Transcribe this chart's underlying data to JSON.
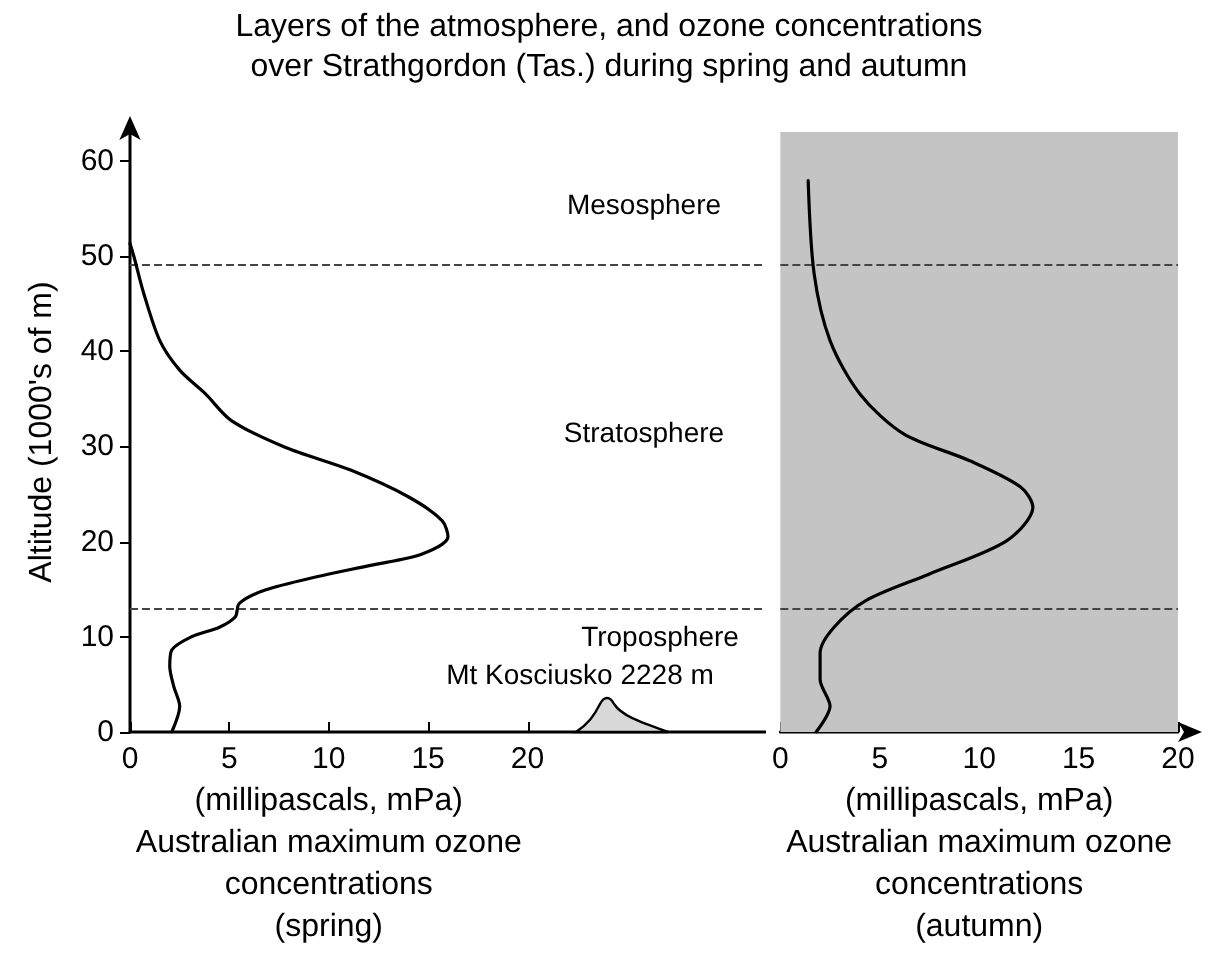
{
  "chart_data": [
    {
      "type": "line",
      "title": "Layers of the atmosphere, and ozone concentrations\nover Strathgordon (Tas.) during spring and autumn",
      "ylabel": "Altitude (1000's of m)",
      "xlabel": "(millipascals, mPa)\nAustralian maximum ozone\nconcentrations\n(spring)",
      "xlim": [
        0,
        32
      ],
      "xticks": [
        0,
        5,
        10,
        15,
        20
      ],
      "ylim": [
        0,
        63
      ],
      "yticks": [
        0,
        10,
        20,
        30,
        40,
        50,
        60
      ],
      "grid": false,
      "marker": "none",
      "line_style": "solid",
      "series": [
        {
          "color": "#000000",
          "x": [
            2.1,
            2.5,
            2.2,
            2.0,
            2.1,
            3.1,
            4.5,
            5.3,
            5.5,
            6.8,
            9.4,
            12.1,
            14.7,
            16.0,
            15.7,
            14.0,
            11.1,
            7.8,
            5.1,
            3.8,
            2.5,
            1.5,
            0.7,
            0.2,
            0
          ],
          "values": [
            0,
            2.7,
            4.8,
            6.9,
            8.6,
            10,
            11,
            12.1,
            13.5,
            14.9,
            16.3,
            17.5,
            18.7,
            20.5,
            22.2,
            24.7,
            27.5,
            29.9,
            32.7,
            35.5,
            38,
            41.1,
            46,
            49.9,
            51.3
          ]
        }
      ],
      "ref_lines": [
        {
          "axis": "y",
          "value": 49,
          "color": "#444444",
          "line_style": "dashed"
        },
        {
          "axis": "y",
          "value": 13,
          "color": "#444444",
          "line_style": "dashed"
        }
      ],
      "annotations": [
        "Mesosphere",
        "Stratosphere",
        "Troposphere",
        "Mt Kosciusko 2228 m"
      ]
    },
    {
      "type": "line",
      "xlabel": "(millipascals, mPa)\nAustralian maximum ozone\nconcentrations\n(autumn)",
      "xlim": [
        0,
        20
      ],
      "xticks": [
        0,
        5,
        10,
        15,
        20
      ],
      "ylim": [
        0,
        63
      ],
      "yticks": [
        0,
        10,
        20,
        30,
        40,
        50,
        60
      ],
      "tick_labels": "x",
      "grid": false,
      "marker": "none",
      "line_style": "solid",
      "series": [
        {
          "color": "#000000",
          "x": [
            1.8,
            2.5,
            2.0,
            2.0,
            2.7,
            4.3,
            7.5,
            11.4,
            12.7,
            12.1,
            9.5,
            6.2,
            4.0,
            2.5,
            1.7,
            1.4
          ],
          "values": [
            0,
            2.7,
            5.5,
            8.3,
            11,
            13.8,
            16.6,
            20.1,
            23.6,
            25.7,
            28.5,
            31.3,
            35.5,
            41.1,
            48.1,
            57.9
          ]
        }
      ],
      "ref_lines": [
        {
          "axis": "y",
          "value": 49,
          "color": "#444444",
          "line_style": "dashed"
        },
        {
          "axis": "y",
          "value": 13,
          "color": "#444444",
          "line_style": "dashed"
        }
      ],
      "bands": [
        {
          "axis": "x",
          "from": 0,
          "to": 20,
          "color": "#c4c4c4"
        }
      ]
    }
  ]
}
